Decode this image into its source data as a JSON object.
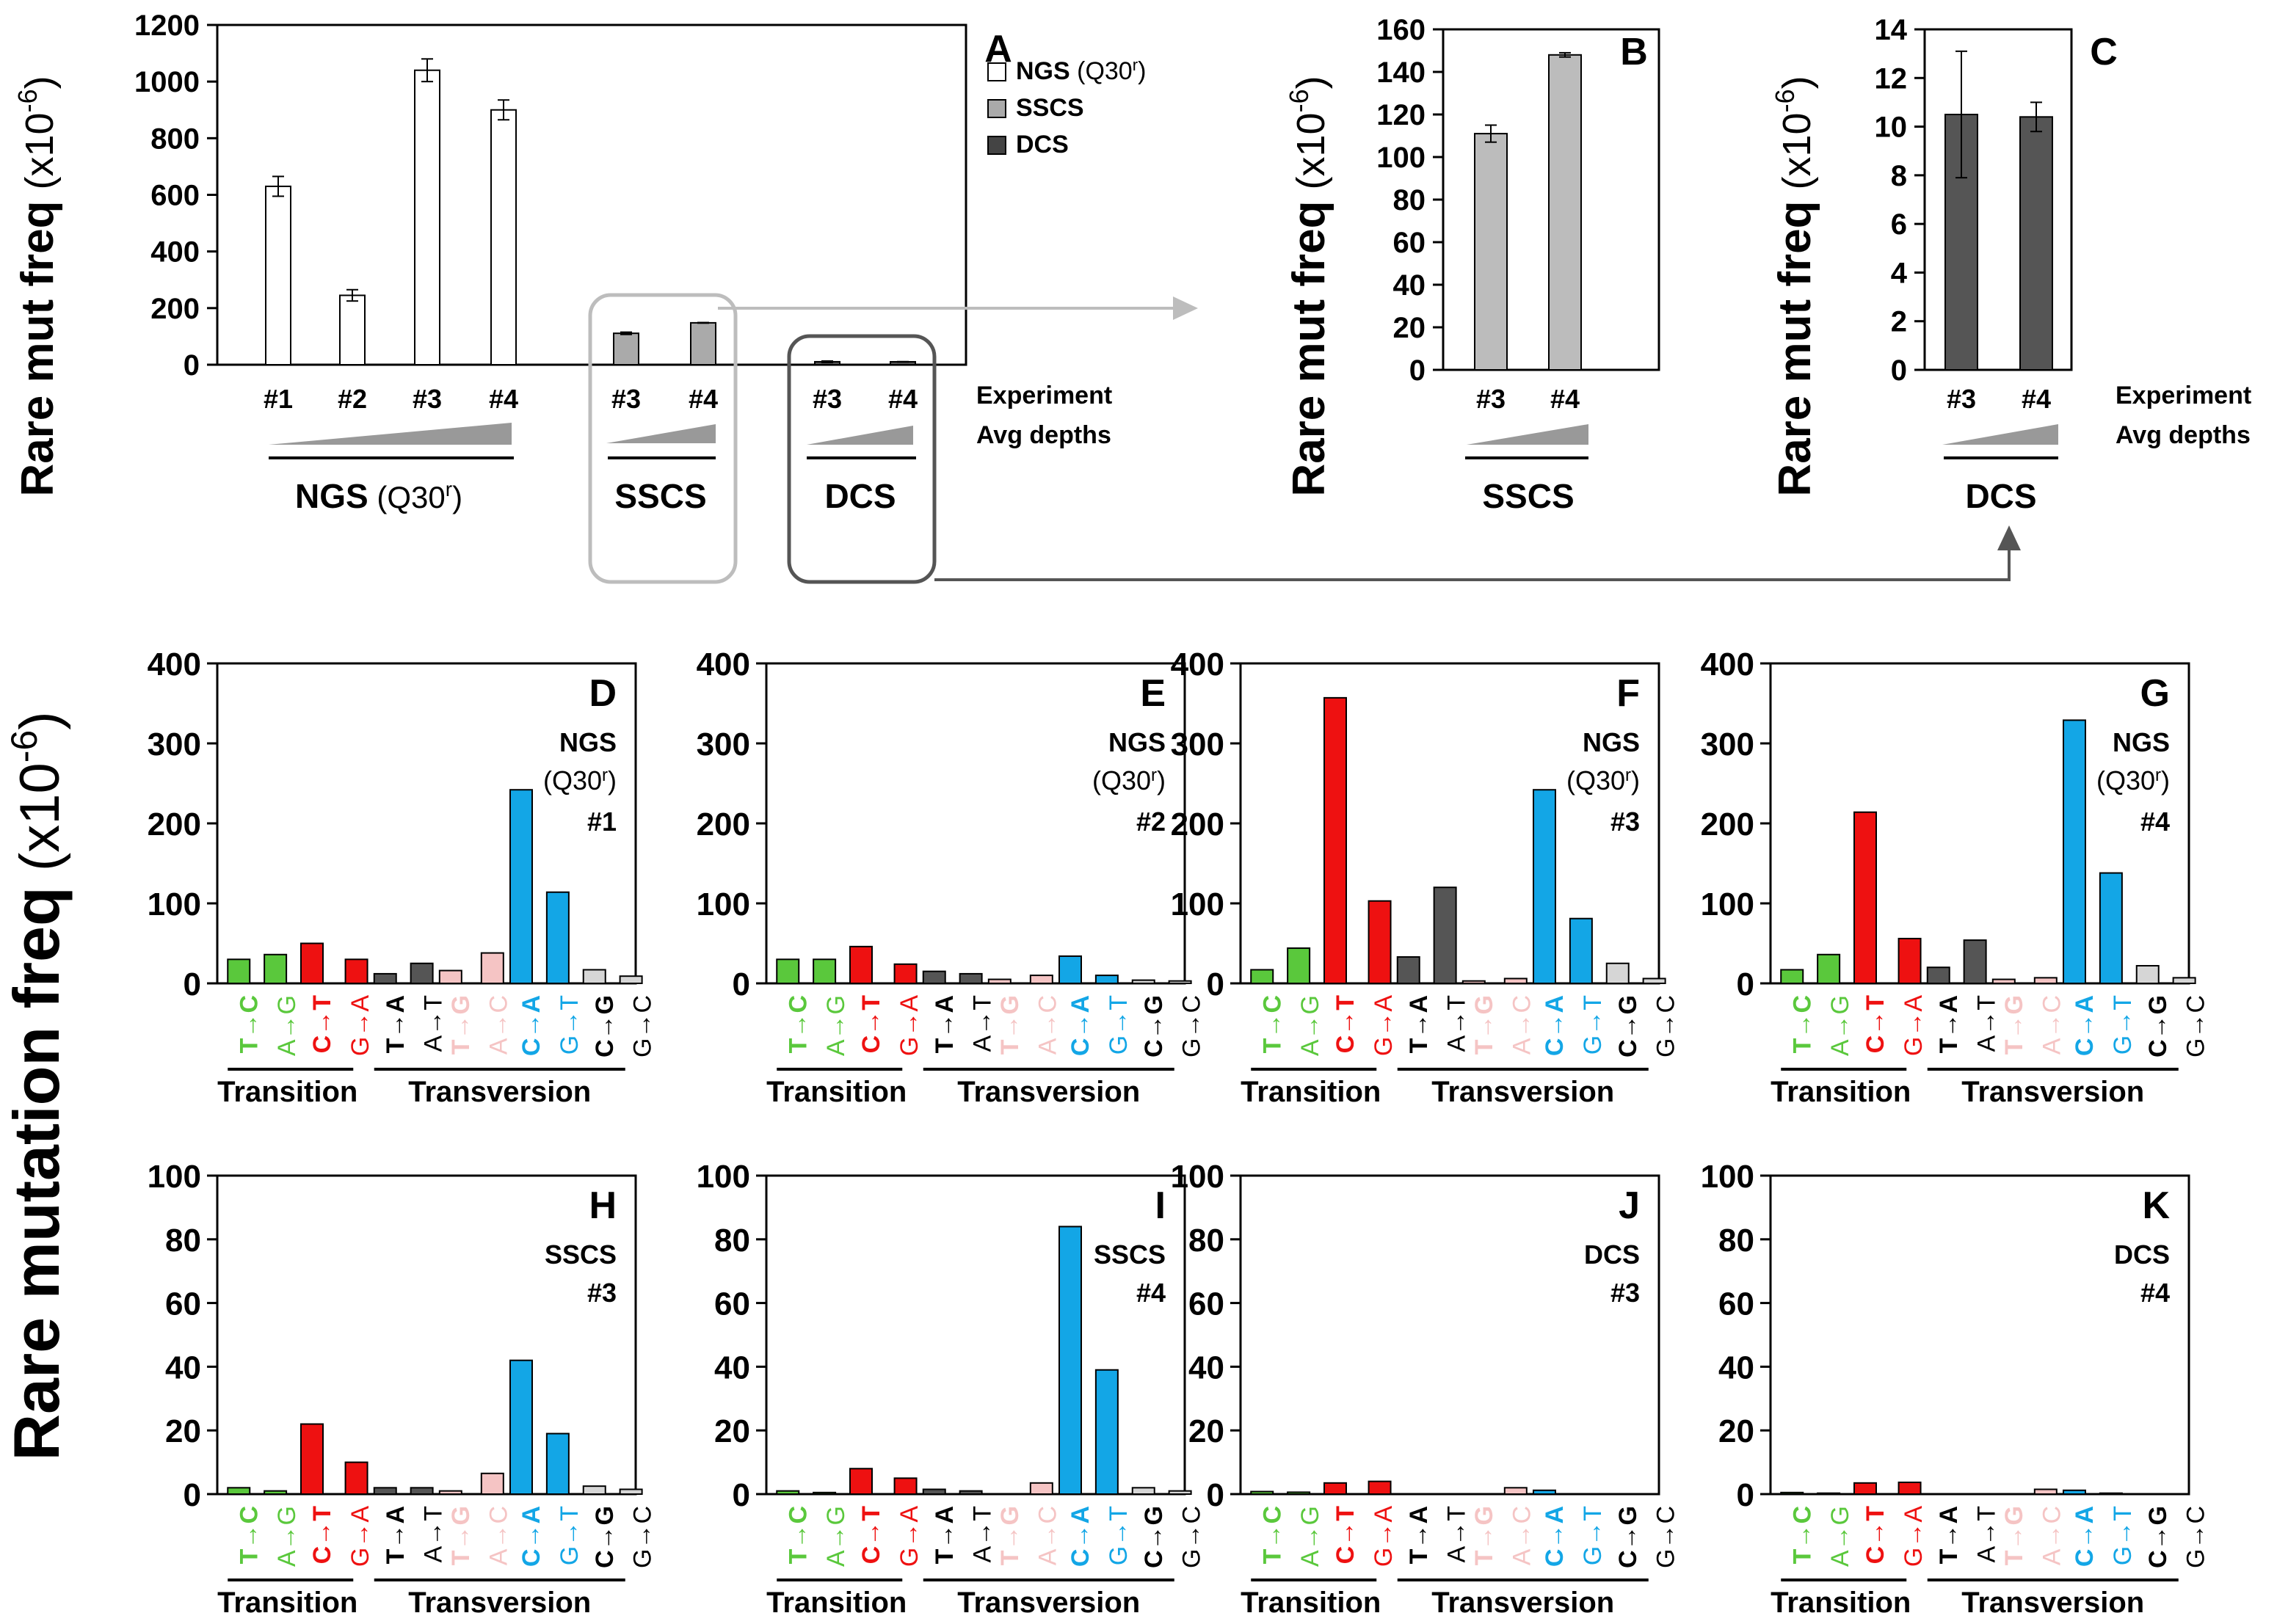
{
  "figure": {
    "big_ylabel": "Rare mutation freq",
    "big_ylabel_unit": "(x10",
    "big_ylabel_exp": "-6",
    "big_ylabel_close": ")",
    "panel_ylabel": "Rare mut freq",
    "legend": {
      "items": [
        {
          "label": "NGS",
          "suffix": "(Q30",
          "sup": "r",
          "close": ")",
          "color": "#ffffff"
        },
        {
          "label": "SSCS",
          "color": "#aaaaaa"
        },
        {
          "label": "DCS",
          "color": "#444444"
        }
      ]
    },
    "row_labels": {
      "experiment": "Experiment",
      "depth": "Avg depths"
    },
    "group_labels": {
      "ngs": "NGS",
      "ngs_suffix": "(Q30",
      "ngs_sup": "r",
      "ngs_close": ")",
      "sscs": "SSCS",
      "dcs": "DCS"
    },
    "class_labels": {
      "transition": "Transition",
      "transversion": "Transversion"
    },
    "colors": {
      "green": "#5ac83c",
      "red": "#ee1111",
      "pink": "#f5c4c4",
      "blue": "#13a6e6",
      "dark": "#555555",
      "light": "#d6d6d6",
      "sscs": "#aaaaaa",
      "sscs_b": "#bcbcbc",
      "dcs": "#555555"
    }
  },
  "chart_data": [
    {
      "panel": "A",
      "type": "bar",
      "ylim": [
        0,
        1200
      ],
      "yticks": [
        0,
        200,
        400,
        600,
        800,
        1000,
        1200
      ],
      "ylabel": "Rare mut freq (x10-6)",
      "categories": [
        "#1",
        "#2",
        "#3",
        "#4",
        "#3",
        "#4",
        "#3",
        "#4"
      ],
      "groups": [
        "NGS",
        "NGS",
        "NGS",
        "NGS",
        "SSCS",
        "SSCS",
        "DCS",
        "DCS"
      ],
      "values": [
        630,
        245,
        1040,
        900,
        111,
        148,
        10.5,
        10.4
      ],
      "errors": [
        35,
        20,
        40,
        35,
        4,
        1,
        2.6,
        0.6
      ]
    },
    {
      "panel": "B",
      "type": "bar",
      "title": "SSCS",
      "ylim": [
        0,
        160
      ],
      "yticks": [
        0,
        20,
        40,
        60,
        80,
        100,
        120,
        140,
        160
      ],
      "ylabel": "Rare mut freq (x10-6)",
      "categories": [
        "#3",
        "#4"
      ],
      "values": [
        111,
        148
      ],
      "errors": [
        4,
        1
      ]
    },
    {
      "panel": "C",
      "type": "bar",
      "title": "DCS",
      "ylim": [
        0,
        14
      ],
      "yticks": [
        0,
        2,
        4,
        6,
        8,
        10,
        12,
        14
      ],
      "ylabel": "Rare mut freq (x10-6)",
      "categories": [
        "#3",
        "#4"
      ],
      "values": [
        10.5,
        10.4
      ],
      "errors": [
        2.6,
        0.6
      ]
    },
    {
      "panel": "D",
      "type": "bar",
      "label": "NGS",
      "sub": "(Q30",
      "sup": "r",
      "sub_close": ")",
      "exp": "#1",
      "ylim": [
        0,
        400
      ],
      "yticks": [
        0,
        100,
        200,
        300,
        400
      ],
      "values": [
        30,
        36,
        50,
        30,
        12,
        25,
        16,
        38,
        242,
        114,
        17,
        9
      ]
    },
    {
      "panel": "E",
      "type": "bar",
      "label": "NGS",
      "sub": "(Q30",
      "sup": "r",
      "sub_close": ")",
      "exp": "#2",
      "ylim": [
        0,
        400
      ],
      "yticks": [
        0,
        100,
        200,
        300,
        400
      ],
      "values": [
        30,
        30,
        46,
        24,
        15,
        12,
        5,
        10,
        34,
        10,
        4,
        3
      ]
    },
    {
      "panel": "F",
      "type": "bar",
      "label": "NGS",
      "sub": "(Q30",
      "sup": "r",
      "sub_close": ")",
      "exp": "#3",
      "ylim": [
        0,
        400
      ],
      "yticks": [
        0,
        100,
        200,
        300,
        400
      ],
      "values": [
        17,
        44,
        357,
        103,
        33,
        120,
        3,
        6,
        242,
        81,
        25,
        6
      ]
    },
    {
      "panel": "G",
      "type": "bar",
      "label": "NGS",
      "sub": "(Q30",
      "sup": "r",
      "sub_close": ")",
      "exp": "#4",
      "ylim": [
        0,
        400
      ],
      "yticks": [
        0,
        100,
        200,
        300,
        400
      ],
      "values": [
        17,
        36,
        214,
        56,
        20,
        54,
        5,
        7,
        329,
        138,
        22,
        7
      ]
    },
    {
      "panel": "H",
      "type": "bar",
      "label": "SSCS",
      "exp": "#3",
      "ylim": [
        0,
        100
      ],
      "yticks": [
        0,
        20,
        40,
        60,
        80,
        100
      ],
      "values": [
        2,
        1,
        22,
        10,
        2,
        2,
        1,
        6.5,
        42,
        19,
        2.5,
        1.5
      ]
    },
    {
      "panel": "I",
      "type": "bar",
      "label": "SSCS",
      "exp": "#4",
      "ylim": [
        0,
        100
      ],
      "yticks": [
        0,
        20,
        40,
        60,
        80,
        100
      ],
      "values": [
        1,
        0.5,
        8,
        5,
        1.5,
        1,
        0,
        3.5,
        84,
        39,
        2,
        1
      ]
    },
    {
      "panel": "J",
      "type": "bar",
      "label": "DCS",
      "exp": "#3",
      "ylim": [
        0,
        100
      ],
      "yticks": [
        0,
        20,
        40,
        60,
        80,
        100
      ],
      "values": [
        0.8,
        0.6,
        3.5,
        4,
        0,
        0,
        0,
        2,
        1.2,
        0,
        0,
        0
      ]
    },
    {
      "panel": "K",
      "type": "bar",
      "label": "DCS",
      "exp": "#4",
      "ylim": [
        0,
        100
      ],
      "yticks": [
        0,
        20,
        40,
        60,
        80,
        100
      ],
      "values": [
        0.5,
        0.3,
        3.5,
        3.7,
        0,
        0,
        0,
        1.5,
        1.2,
        0.3,
        0,
        0
      ]
    }
  ],
  "mutation_types": [
    {
      "top": "T→C",
      "bot": "A→G",
      "color": "green",
      "top_color": "#5ac83c",
      "bot_color": "#5ac83c"
    },
    {
      "top": "C→T",
      "bot": "G→A",
      "color": "red",
      "top_color": "#ee1111",
      "bot_color": "#ee1111"
    },
    {
      "top": "T→A",
      "bot": "A→T",
      "color": "dark",
      "top_color": "#000000",
      "bot_color": "#000000"
    },
    {
      "top": "T→G",
      "bot": "A→C",
      "color": "pink",
      "top_color": "#f5c4c4",
      "bot_color": "#f5c4c4"
    },
    {
      "top": "C→A",
      "bot": "G→T",
      "color": "blue",
      "top_color": "#13a6e6",
      "bot_color": "#13a6e6"
    },
    {
      "top": "C→G",
      "bot": "G→C",
      "color": "light",
      "top_color": "#000000",
      "bot_color": "#000000"
    }
  ]
}
